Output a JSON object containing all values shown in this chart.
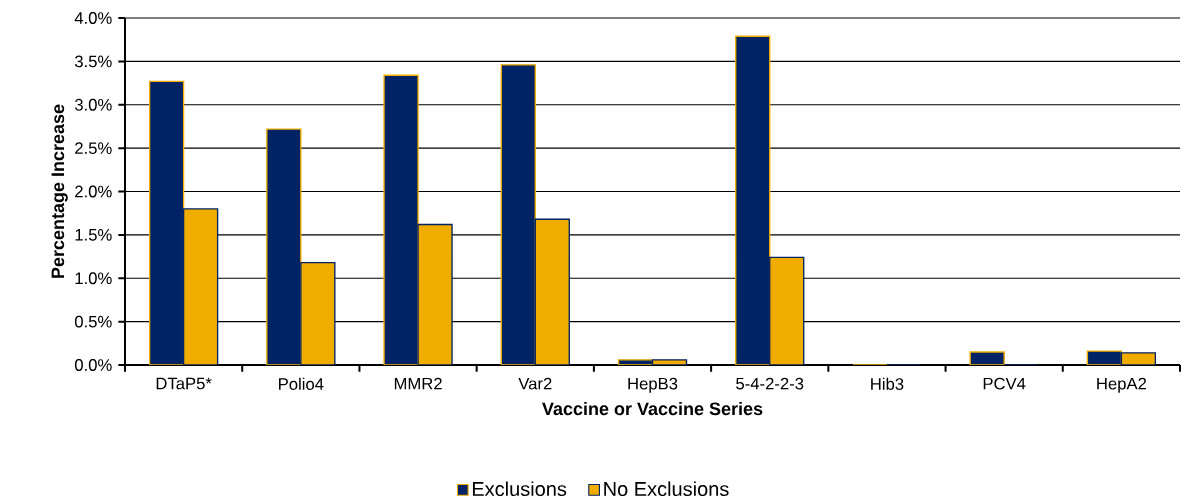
{
  "chart_data": {
    "type": "bar",
    "xlabel": "Vaccine or Vaccine Series",
    "ylabel": "Percentage Increase",
    "categories": [
      "DTaP5*",
      "Polio4",
      "MMR2",
      "Var2",
      "HepB3",
      "5-4-2-2-3",
      "Hib3",
      "PCV4",
      "HepA2"
    ],
    "series": [
      {
        "name": "Exclusions",
        "color": "#002366",
        "values": [
          3.27,
          2.72,
          3.34,
          3.46,
          0.06,
          3.79,
          0,
          0.15,
          0.16
        ]
      },
      {
        "name": "No Exclusions",
        "color": "#f0ad00",
        "values": [
          1.8,
          1.18,
          1.62,
          1.68,
          0.06,
          1.24,
          0,
          0,
          0.14
        ]
      }
    ],
    "ylim": [
      0,
      4
    ],
    "yticks": [
      {
        "value": 0,
        "label": "0.0%"
      },
      {
        "value": 0.5,
        "label": "0.5%"
      },
      {
        "value": 1,
        "label": "1.0%"
      },
      {
        "value": 1.5,
        "label": "1.5%"
      },
      {
        "value": 2,
        "label": "2.0%"
      },
      {
        "value": 2.5,
        "label": "2.5%"
      },
      {
        "value": 3,
        "label": "3.0%"
      },
      {
        "value": 3.5,
        "label": "3.5%"
      },
      {
        "value": 4,
        "label": "4.0%"
      }
    ],
    "grid": "y",
    "legend": "bottom"
  }
}
